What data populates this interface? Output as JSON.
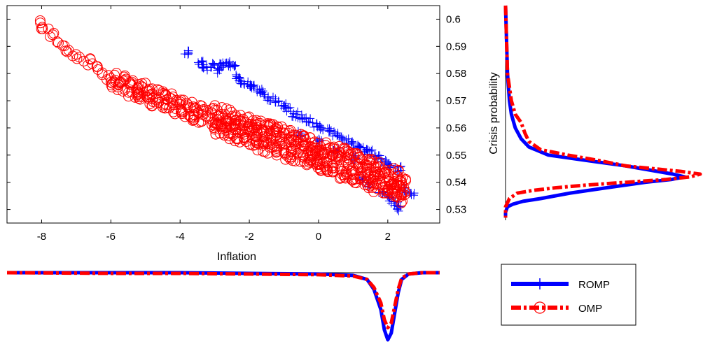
{
  "chart_data": [
    {
      "type": "scatter",
      "panel": "main",
      "title": "",
      "xlabel": "Inflation",
      "ylabel": "Crisis probability",
      "xlim": [
        -9,
        3.5
      ],
      "ylim": [
        0.525,
        0.605
      ],
      "xticks": [
        -8,
        -6,
        -4,
        -2,
        0,
        2
      ],
      "yticks": [
        0.53,
        0.54,
        0.55,
        0.56,
        0.57,
        0.58,
        0.59,
        0.6
      ],
      "y_axis_side": "right",
      "grid": false,
      "series": [
        {
          "name": "ROMP",
          "marker": "plus",
          "color": "#0000ff",
          "x": [
            -3.8,
            -3.4,
            -3.3,
            -3.1,
            -2.9,
            -2.8,
            -2.6,
            -2.5,
            -2.3,
            -2.2,
            -2.0,
            -1.9,
            -1.7,
            -1.6,
            -1.4,
            -1.2,
            -1.0,
            -0.9,
            -0.7,
            -0.5,
            -0.3,
            -0.1,
            0.1,
            0.3,
            0.5,
            0.7,
            0.9,
            1.1,
            1.3,
            1.5,
            1.7,
            1.9,
            2.1,
            2.3,
            2.5,
            2.7,
            1.2,
            1.5,
            1.8,
            2.0,
            2.2,
            2.3,
            -0.5,
            0.0,
            0.5,
            1.0
          ],
          "y": [
            0.588,
            0.584,
            0.582,
            0.583,
            0.581,
            0.583,
            0.584,
            0.583,
            0.579,
            0.577,
            0.576,
            0.575,
            0.574,
            0.572,
            0.571,
            0.57,
            0.568,
            0.567,
            0.565,
            0.564,
            0.563,
            0.561,
            0.56,
            0.559,
            0.558,
            0.556,
            0.555,
            0.553,
            0.552,
            0.551,
            0.549,
            0.548,
            0.546,
            0.545,
            0.537,
            0.536,
            0.541,
            0.539,
            0.536,
            0.534,
            0.532,
            0.53,
            0.558,
            0.555,
            0.552,
            0.549
          ]
        },
        {
          "name": "OMP",
          "marker": "circle",
          "color": "#ff0000",
          "x": [
            -8.1,
            -7.9,
            -7.7,
            -7.5,
            -7.3,
            -7.1,
            -6.9,
            -6.7,
            -6.5,
            -6.3,
            -6.1,
            -5.9,
            -5.7,
            -5.5,
            -5.3,
            -5.1,
            -4.9,
            -4.7,
            -4.5,
            -4.3,
            -4.1,
            -3.9,
            -3.7,
            -3.5,
            -3.3,
            -3.1,
            -2.9,
            -2.7,
            -2.5,
            -2.3,
            -2.1,
            -1.9,
            -1.7,
            -1.5,
            -1.3,
            -1.1,
            -0.9,
            -0.7,
            -0.5,
            -0.3,
            -0.1,
            0.1,
            0.3,
            0.5,
            0.7,
            0.9,
            1.1,
            1.3,
            1.5,
            1.7,
            1.9,
            2.1,
            2.3,
            2.4
          ],
          "y": [
            0.598,
            0.596,
            0.594,
            0.591,
            0.589,
            0.588,
            0.586,
            0.584,
            0.583,
            0.581,
            0.579,
            0.577,
            0.576,
            0.575,
            0.574,
            0.573,
            0.572,
            0.571,
            0.57,
            0.569,
            0.568,
            0.567,
            0.566,
            0.565,
            0.565,
            0.564,
            0.563,
            0.562,
            0.561,
            0.56,
            0.559,
            0.558,
            0.557,
            0.556,
            0.556,
            0.555,
            0.554,
            0.553,
            0.552,
            0.551,
            0.55,
            0.549,
            0.548,
            0.548,
            0.547,
            0.546,
            0.545,
            0.544,
            0.543,
            0.542,
            0.541,
            0.54,
            0.539,
            0.538
          ]
        }
      ]
    },
    {
      "type": "line",
      "panel": "right-density",
      "title": "",
      "orientation": "vertical",
      "ylim": [
        0.525,
        0.605
      ],
      "series": [
        {
          "name": "ROMP",
          "color": "#0000ff",
          "y": [
            0.605,
            0.58,
            0.57,
            0.565,
            0.56,
            0.556,
            0.553,
            0.55,
            0.548,
            0.546,
            0.545,
            0.544,
            0.543,
            0.542,
            0.541,
            0.54,
            0.538,
            0.536,
            0.534,
            0.533,
            0.532,
            0.531,
            0.529,
            0.527
          ],
          "density": [
            0.0,
            0.01,
            0.02,
            0.03,
            0.05,
            0.08,
            0.12,
            0.22,
            0.42,
            0.62,
            0.7,
            0.78,
            0.86,
            0.92,
            0.85,
            0.72,
            0.52,
            0.33,
            0.18,
            0.09,
            0.04,
            0.01,
            0.0,
            0.0
          ]
        },
        {
          "name": "OMP",
          "color": "#ff0000",
          "y": [
            0.605,
            0.58,
            0.57,
            0.565,
            0.562,
            0.558,
            0.555,
            0.552,
            0.55,
            0.548,
            0.546,
            0.545,
            0.544,
            0.543,
            0.542,
            0.541,
            0.54,
            0.539,
            0.538,
            0.537,
            0.536,
            0.534,
            0.531,
            0.527
          ],
          "density": [
            0.0,
            0.01,
            0.03,
            0.05,
            0.08,
            0.1,
            0.12,
            0.18,
            0.32,
            0.48,
            0.62,
            0.76,
            0.9,
            1.0,
            0.95,
            0.82,
            0.62,
            0.42,
            0.26,
            0.14,
            0.06,
            0.02,
            0.0,
            0.0
          ]
        }
      ]
    },
    {
      "type": "line",
      "panel": "bottom-density",
      "title": "",
      "orientation": "horizontal-inverted",
      "xlim": [
        -9,
        3.5
      ],
      "series": [
        {
          "name": "ROMP",
          "color": "#0000ff",
          "x": [
            -9,
            -6,
            -4,
            -2,
            0,
            1.0,
            1.4,
            1.6,
            1.8,
            1.9,
            2.0,
            2.1,
            2.2,
            2.3,
            2.4,
            2.6,
            3.0,
            3.5
          ],
          "density": [
            0.0,
            0.0,
            0.0,
            0.01,
            0.02,
            0.04,
            0.1,
            0.25,
            0.55,
            0.85,
            1.0,
            0.9,
            0.6,
            0.3,
            0.1,
            0.02,
            0.0,
            0.0
          ]
        },
        {
          "name": "OMP",
          "color": "#ff0000",
          "x": [
            -9,
            -6,
            -4,
            -2,
            0,
            1.0,
            1.4,
            1.6,
            1.8,
            1.9,
            2.0,
            2.1,
            2.2,
            2.3,
            2.4,
            2.6,
            3.0,
            3.5
          ],
          "density": [
            0.0,
            0.01,
            0.01,
            0.02,
            0.03,
            0.05,
            0.1,
            0.22,
            0.45,
            0.7,
            0.82,
            0.75,
            0.5,
            0.25,
            0.08,
            0.02,
            0.0,
            0.0
          ]
        }
      ]
    }
  ],
  "legend": {
    "placement": "bottom-right",
    "entries": [
      {
        "label": "ROMP",
        "color": "#0000ff",
        "marker": "plus",
        "line": "solid"
      },
      {
        "label": "OMP",
        "color": "#ff0000",
        "marker": "circle",
        "line": "dashdot"
      }
    ]
  }
}
